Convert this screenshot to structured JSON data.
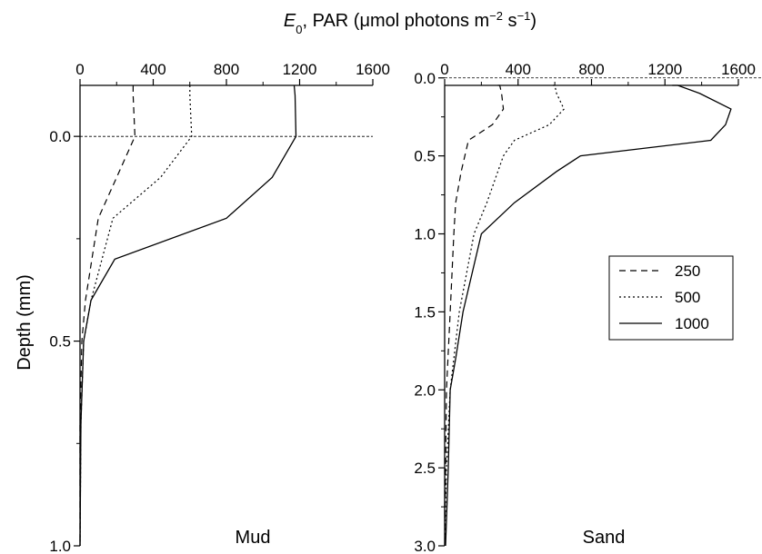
{
  "chart_data": [
    {
      "type": "line",
      "panel_label": "Mud",
      "x_axis_title": {
        "italic": "E",
        "sub": "0",
        "rest": ", PAR (μmol photons m",
        "sup1": "−2",
        "mid": " s",
        "sup2": "−1",
        "end": ")"
      },
      "ylabel": "Depth (mm)",
      "xlim": [
        0,
        1600
      ],
      "xticks": [
        "0",
        "400",
        "800",
        "1200",
        "1600"
      ],
      "ylim": [
        -0.2,
        1.0
      ],
      "yticks": [
        "0.0",
        "0.5",
        "1.0"
      ],
      "y_reverse": true,
      "surface_line": 0.0,
      "series": [
        {
          "name": "250",
          "style": "dashed",
          "points": [
            [
              290,
              -0.2
            ],
            [
              290,
              -0.1
            ],
            [
              300,
              0.0
            ],
            [
              200,
              0.1
            ],
            [
              100,
              0.2
            ],
            [
              30,
              0.4
            ],
            [
              10,
              0.5
            ],
            [
              0,
              0.7
            ],
            [
              0,
              1.0
            ]
          ]
        },
        {
          "name": "500",
          "style": "dotted",
          "points": [
            [
              600,
              -0.2
            ],
            [
              600,
              -0.1
            ],
            [
              610,
              0.0
            ],
            [
              440,
              0.1
            ],
            [
              180,
              0.2
            ],
            [
              60,
              0.4
            ],
            [
              20,
              0.5
            ],
            [
              5,
              0.7
            ],
            [
              0,
              1.0
            ]
          ]
        },
        {
          "name": "1000",
          "style": "solid",
          "points": [
            [
              1170,
              -0.2
            ],
            [
              1175,
              -0.1
            ],
            [
              1180,
              0.0
            ],
            [
              1050,
              0.1
            ],
            [
              800,
              0.2
            ],
            [
              190,
              0.3
            ],
            [
              60,
              0.4
            ],
            [
              20,
              0.5
            ],
            [
              5,
              0.7
            ],
            [
              0,
              1.0
            ]
          ]
        }
      ]
    },
    {
      "type": "line",
      "panel_label": "Sand",
      "xlim": [
        0,
        1600
      ],
      "xticks": [
        "0",
        "400",
        "800",
        "1200",
        "1600"
      ],
      "ylim": [
        -0.15,
        3.0
      ],
      "yticks": [
        "0.0",
        "0.5",
        "1.0",
        "1.5",
        "2.0",
        "2.5",
        "3.0"
      ],
      "y_reverse": true,
      "surface_line": 0.0,
      "series": [
        {
          "name": "250",
          "style": "dashed",
          "points": [
            [
              290,
              -0.15
            ],
            [
              300,
              0.0
            ],
            [
              310,
              0.1
            ],
            [
              320,
              0.2
            ],
            [
              260,
              0.3
            ],
            [
              130,
              0.4
            ],
            [
              110,
              0.5
            ],
            [
              90,
              0.6
            ],
            [
              60,
              0.8
            ],
            [
              50,
              1.0
            ],
            [
              30,
              1.5
            ],
            [
              10,
              2.0
            ],
            [
              5,
              2.5
            ],
            [
              0,
              3.0
            ]
          ]
        },
        {
          "name": "500",
          "style": "dotted",
          "points": [
            [
              590,
              -0.15
            ],
            [
              600,
              0.0
            ],
            [
              610,
              0.1
            ],
            [
              650,
              0.2
            ],
            [
              570,
              0.3
            ],
            [
              380,
              0.4
            ],
            [
              320,
              0.5
            ],
            [
              230,
              0.8
            ],
            [
              160,
              1.0
            ],
            [
              80,
              1.5
            ],
            [
              30,
              2.0
            ],
            [
              10,
              2.5
            ],
            [
              0,
              3.0
            ]
          ]
        },
        {
          "name": "1000",
          "style": "solid",
          "points": [
            [
              1240,
              -0.15
            ],
            [
              1270,
              0.0
            ],
            [
              1390,
              0.1
            ],
            [
              1560,
              0.2
            ],
            [
              1530,
              0.3
            ],
            [
              1450,
              0.4
            ],
            [
              740,
              0.5
            ],
            [
              610,
              0.6
            ],
            [
              380,
              0.8
            ],
            [
              200,
              1.0
            ],
            [
              160,
              1.2
            ],
            [
              100,
              1.5
            ],
            [
              60,
              1.8
            ],
            [
              30,
              2.0
            ],
            [
              20,
              2.5
            ],
            [
              5,
              3.0
            ]
          ]
        }
      ]
    }
  ],
  "legend": {
    "placement": "right",
    "entries": [
      {
        "label": "250",
        "style": "dashed"
      },
      {
        "label": "500",
        "style": "dotted"
      },
      {
        "label": "1000",
        "style": "solid"
      }
    ]
  }
}
